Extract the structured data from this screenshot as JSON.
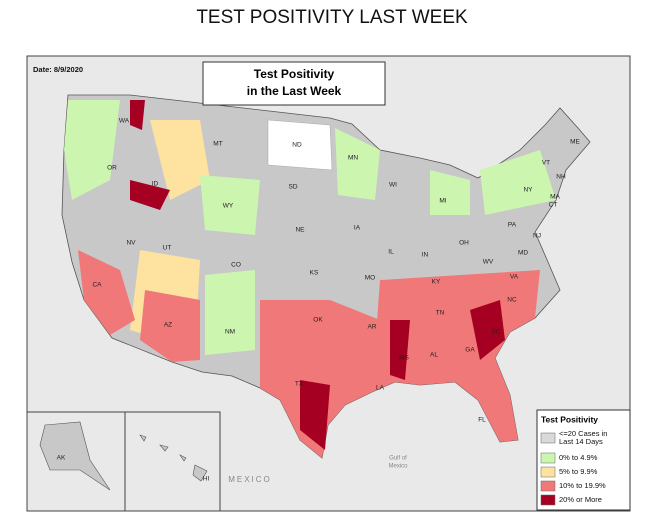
{
  "title": "TEST POSITIVITY LAST WEEK",
  "map": {
    "date": "Date: 8/9/2020",
    "box_title": [
      "Test Positivity",
      "in the Last Week"
    ],
    "states": [
      "WA",
      "OR",
      "ID",
      "MT",
      "ND",
      "MN",
      "SD",
      "WY",
      "WI",
      "MI",
      "NV",
      "CA",
      "UT",
      "CO",
      "NE",
      "IA",
      "IL",
      "IN",
      "OH",
      "PA",
      "NY",
      "VT",
      "NH",
      "ME",
      "MA",
      "CT",
      "NJ",
      "MD",
      "WV",
      "VA",
      "KY",
      "KS",
      "MO",
      "TN",
      "NC",
      "SC",
      "GA",
      "AL",
      "MS",
      "AR",
      "LA",
      "OK",
      "TX",
      "NM",
      "AZ",
      "FL",
      "AK",
      "HI"
    ],
    "mexico": "MEXICO",
    "gulf": [
      "Gulf of",
      "Mexico"
    ]
  },
  "legend": {
    "title": "Test Positivity",
    "items": [
      {
        "label": [
          "<=20 Cases in",
          "Last 14 Days"
        ],
        "color": "#d9d9d9"
      },
      {
        "label": [
          "0% to 4.9%"
        ],
        "color": "#ccf5b0"
      },
      {
        "label": [
          "5% to 9.9%"
        ],
        "color": "#fde2a0"
      },
      {
        "label": [
          "10% to 19.9%"
        ],
        "color": "#f07878"
      },
      {
        "label": [
          "20% or More"
        ],
        "color": "#a50021"
      }
    ]
  }
}
